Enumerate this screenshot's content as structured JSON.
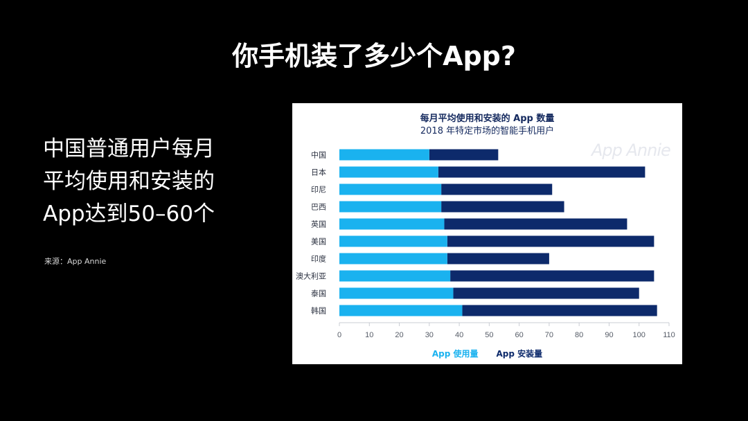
{
  "slide": {
    "title": "你手机装了多少个App?",
    "body_lines": [
      "中国普通用户每月",
      "平均使用和安装的",
      "App达到50–60个"
    ],
    "source": "来源：App Annie"
  },
  "chart_data": {
    "type": "bar",
    "orientation": "horizontal",
    "stacked": false,
    "title": "每月平均使用和安装的 App 数量",
    "subtitle": "2018 年特定市场的智能手机用户",
    "watermark": "App Annie",
    "categories": [
      "中国",
      "日本",
      "印尼",
      "巴西",
      "英国",
      "美国",
      "印度",
      "澳大利亚",
      "泰国",
      "韩国"
    ],
    "series": [
      {
        "name": "App 使用量",
        "color": "#1ab2ef",
        "values": [
          30,
          33,
          34,
          34,
          35,
          36,
          36,
          37,
          38,
          41
        ]
      },
      {
        "name": "App 安装量",
        "color": "#0d2a6b",
        "values": [
          53,
          102,
          71,
          75,
          96,
          105,
          70,
          105,
          100,
          106
        ]
      }
    ],
    "x_ticks": [
      0,
      10,
      20,
      30,
      40,
      50,
      60,
      70,
      80,
      90,
      100,
      110
    ],
    "xlim": [
      0,
      110
    ],
    "legend_position": "bottom"
  }
}
